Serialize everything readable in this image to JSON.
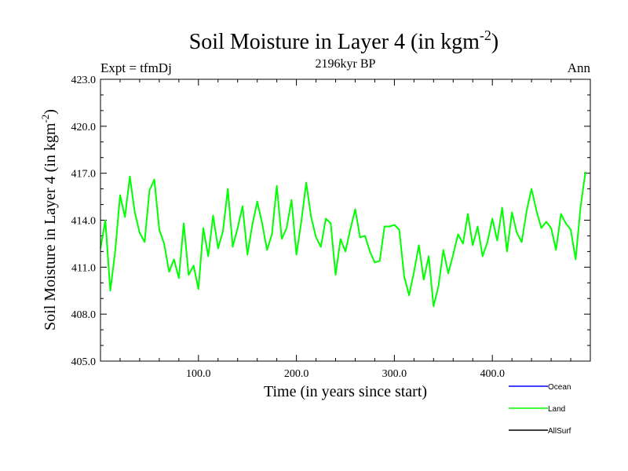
{
  "chart_data": {
    "type": "line",
    "title": "Soil Moisture in Layer 4 (in kgm",
    "title_superscript": "-2",
    "title_suffix": ")",
    "subtitle": "2196kyr BP",
    "left_label": "Expt = tfmDj",
    "right_label": "Ann",
    "xlabel": "Time (in years since start)",
    "ylabel": "Soil Moisture in Layer 4 (in kgm",
    "ylabel_superscript": "-2",
    "ylabel_suffix": ")",
    "xlim": [
      0,
      500
    ],
    "ylim": [
      405.0,
      423.0
    ],
    "xticks": [
      100,
      200,
      300,
      400
    ],
    "xtick_labels": [
      "100.0",
      "200.0",
      "300.0",
      "400.0"
    ],
    "yticks": [
      405,
      408,
      411,
      414,
      417,
      420,
      423
    ],
    "ytick_labels": [
      "405.0",
      "408.0",
      "411.0",
      "414.0",
      "417.0",
      "420.0",
      "423.0"
    ],
    "legend": [
      {
        "name": "Ocean",
        "color": "#0000ff"
      },
      {
        "name": "Land",
        "color": "#00ff00"
      },
      {
        "name": "AllSurf",
        "color": "#000000"
      }
    ],
    "series": [
      {
        "name": "Land",
        "color": "#00ff00",
        "x_start": 0,
        "x_step": 5,
        "values": [
          412.2,
          414.0,
          409.5,
          412.0,
          415.6,
          414.2,
          416.8,
          414.5,
          413.2,
          412.6,
          415.9,
          416.6,
          413.4,
          412.5,
          410.7,
          411.5,
          410.3,
          413.8,
          410.5,
          411.1,
          409.6,
          413.5,
          411.7,
          414.3,
          412.2,
          413.3,
          416.0,
          412.3,
          413.5,
          414.9,
          411.8,
          413.7,
          415.2,
          413.8,
          412.1,
          413.1,
          416.2,
          412.8,
          413.5,
          415.3,
          411.8,
          413.9,
          416.4,
          414.2,
          412.9,
          412.3,
          414.1,
          413.8,
          410.5,
          412.8,
          412.0,
          413.4,
          414.7,
          412.9,
          413.0,
          412.0,
          411.3,
          411.4,
          413.6,
          413.6,
          413.7,
          413.4,
          410.4,
          409.2,
          410.7,
          412.4,
          410.2,
          411.7,
          408.5,
          409.8,
          412.1,
          410.6,
          411.8,
          413.1,
          412.5,
          414.4,
          412.4,
          413.6,
          411.7,
          412.6,
          414.1,
          412.7,
          414.8,
          412.0,
          414.5,
          413.2,
          412.6,
          414.6,
          416.0,
          414.6,
          413.5,
          413.9,
          413.5,
          412.1,
          414.4,
          413.8,
          413.4,
          411.5,
          414.8,
          417.1
        ]
      }
    ]
  }
}
